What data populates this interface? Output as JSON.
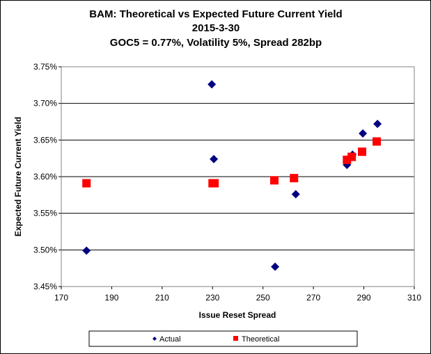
{
  "chart_data": {
    "type": "scatter",
    "title": [
      "BAM: Theoretical vs Expected Future Current Yield",
      "2015-3-30",
      "GOC5 = 0.77%, Volatility  5%, Spread 282bp"
    ],
    "xlabel": "Issue Reset Spread",
    "ylabel": "Expected Future Current Yield",
    "xlim": [
      170,
      310
    ],
    "ylim": [
      3.45,
      3.75
    ],
    "xticks": [
      170,
      190,
      210,
      230,
      250,
      270,
      290,
      310
    ],
    "yticks": [
      3.45,
      3.5,
      3.55,
      3.6,
      3.65,
      3.7,
      3.75
    ],
    "ytick_labels": [
      "3.45%",
      "3.50%",
      "3.55%",
      "3.60%",
      "3.65%",
      "3.70%",
      "3.75%"
    ],
    "grid": "horizontal",
    "legend_position": "bottom",
    "series": [
      {
        "name": "Actual",
        "marker": "diamond",
        "color": "#000080",
        "points": [
          [
            180,
            3.499
          ],
          [
            229.7,
            3.726
          ],
          [
            230.5,
            3.624
          ],
          [
            254.8,
            3.477
          ],
          [
            263,
            3.576
          ],
          [
            283.3,
            3.616
          ],
          [
            285.5,
            3.63
          ],
          [
            289.6,
            3.659
          ],
          [
            295.4,
            3.672
          ]
        ]
      },
      {
        "name": "Theoretical",
        "marker": "square",
        "color": "#ff0000",
        "points": [
          [
            180,
            3.591
          ],
          [
            230,
            3.591
          ],
          [
            230.8,
            3.591
          ],
          [
            254.5,
            3.595
          ],
          [
            262.3,
            3.598
          ],
          [
            283.3,
            3.623
          ],
          [
            285.2,
            3.627
          ],
          [
            289.3,
            3.634
          ],
          [
            295.1,
            3.648
          ]
        ]
      }
    ]
  }
}
